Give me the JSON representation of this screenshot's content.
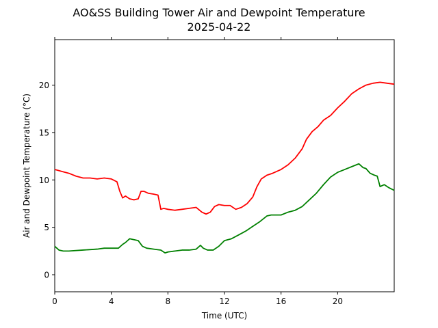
{
  "chart_data": {
    "type": "line",
    "title": "AO&SS Building Tower Air and Dewpoint Temperature",
    "subtitle": "2025-04-22",
    "xlabel": "Time (UTC)",
    "ylabel": "Air and Dewpoint Temperature (°C)",
    "xlim": [
      0,
      24
    ],
    "ylim": [
      -1.8,
      24.8
    ],
    "xticks": [
      0,
      4,
      8,
      12,
      16,
      20
    ],
    "yticks": [
      0,
      5,
      10,
      15,
      20
    ],
    "grid": false,
    "legend": "none",
    "series": [
      {
        "color": "#ff0000",
        "x": [
          0.0,
          0.5,
          1.0,
          1.5,
          2.0,
          2.5,
          3.0,
          3.5,
          4.0,
          4.4,
          4.6,
          4.8,
          5.0,
          5.3,
          5.6,
          5.9,
          6.1,
          6.3,
          6.6,
          7.0,
          7.3,
          7.5,
          7.7,
          8.0,
          8.5,
          9.0,
          9.5,
          10.0,
          10.4,
          10.7,
          11.0,
          11.3,
          11.6,
          12.0,
          12.4,
          12.8,
          13.2,
          13.6,
          14.0,
          14.3,
          14.6,
          15.0,
          15.4,
          16.0,
          16.5,
          17.0,
          17.5,
          17.8,
          18.2,
          18.6,
          19.0,
          19.5,
          20.0,
          20.5,
          21.0,
          21.5,
          22.0,
          22.5,
          23.0,
          23.5,
          24.0
        ],
        "y": [
          11.1,
          10.9,
          10.7,
          10.4,
          10.2,
          10.2,
          10.1,
          10.2,
          10.1,
          9.8,
          8.8,
          8.1,
          8.3,
          8.0,
          7.9,
          8.0,
          8.8,
          8.8,
          8.6,
          8.5,
          8.4,
          6.9,
          7.0,
          6.9,
          6.8,
          6.9,
          7.0,
          7.1,
          6.6,
          6.4,
          6.6,
          7.2,
          7.4,
          7.3,
          7.3,
          6.9,
          7.1,
          7.5,
          8.2,
          9.3,
          10.1,
          10.5,
          10.7,
          11.1,
          11.6,
          12.3,
          13.3,
          14.3,
          15.1,
          15.6,
          16.3,
          16.8,
          17.6,
          18.3,
          19.1,
          19.6,
          20.0,
          20.2,
          20.3,
          20.2,
          20.1
        ]
      },
      {
        "color": "#008000",
        "x": [
          0.0,
          0.3,
          0.6,
          1.0,
          2.0,
          3.0,
          3.5,
          4.0,
          4.5,
          4.8,
          5.0,
          5.3,
          5.6,
          5.9,
          6.2,
          6.5,
          7.0,
          7.5,
          7.8,
          8.0,
          8.5,
          9.0,
          9.5,
          10.0,
          10.3,
          10.5,
          10.8,
          11.2,
          11.6,
          12.0,
          12.5,
          13.0,
          13.5,
          14.0,
          14.5,
          15.0,
          15.3,
          15.7,
          16.0,
          16.5,
          17.0,
          17.5,
          18.0,
          18.5,
          19.0,
          19.5,
          20.0,
          20.5,
          21.0,
          21.5,
          21.8,
          22.0,
          22.3,
          22.6,
          22.8,
          23.0,
          23.3,
          23.6,
          24.0
        ],
        "y": [
          3.0,
          2.6,
          2.5,
          2.5,
          2.6,
          2.7,
          2.8,
          2.8,
          2.8,
          3.2,
          3.4,
          3.8,
          3.7,
          3.6,
          3.0,
          2.8,
          2.7,
          2.6,
          2.3,
          2.4,
          2.5,
          2.6,
          2.6,
          2.7,
          3.1,
          2.8,
          2.6,
          2.6,
          3.0,
          3.6,
          3.8,
          4.2,
          4.6,
          5.1,
          5.6,
          6.2,
          6.3,
          6.3,
          6.3,
          6.6,
          6.8,
          7.2,
          7.9,
          8.6,
          9.5,
          10.3,
          10.8,
          11.1,
          11.4,
          11.7,
          11.3,
          11.2,
          10.7,
          10.5,
          10.4,
          9.3,
          9.5,
          9.2,
          8.9
        ]
      }
    ]
  }
}
